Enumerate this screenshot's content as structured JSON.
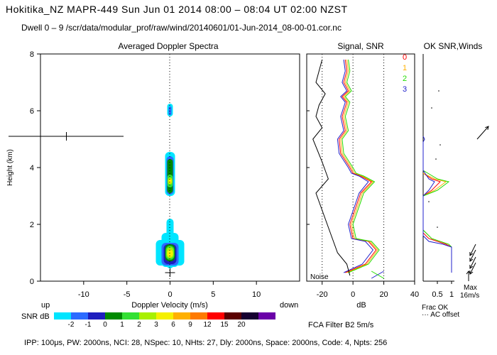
{
  "header": {
    "title": "Hokitika_NZ   MAPR-449   Sun Jun 01 2014 08:00 – 08:04 UT 02:00 NZST",
    "dwell": "Dwell  0 –  9   /scr/data/modular_prof/raw/wind/20140601/01-Jun-2014_08-00-01.cor.nc"
  },
  "footer": {
    "params": "IPP: 100μs,  PW: 2000ns,  NCI:  28,  NSpec: 10, NHts: 27,  Dly: 2000ns,  Space: 2000ns,  Code: 4,  Npts: 256",
    "fca_filter": "FCA Filter B2   5m/s"
  },
  "colors": {
    "snr_scale": [
      "#00e5ff",
      "#2c6bff",
      "#1e1ebe",
      "#008a00",
      "#33e033",
      "#a8f000",
      "#f5f000",
      "#ffb000",
      "#ff7a00",
      "#ff0000",
      "#5a0000",
      "#150030",
      "#6a00a8"
    ],
    "beam0": "#ff0000",
    "beam1": "#ffb000",
    "beam2": "#22dd00",
    "beam3": "#2020cc"
  },
  "chart_data": [
    {
      "type": "heatmap",
      "title": "Averaged Doppler Spectra",
      "xlabel": "Doppler Velocity (m/s)",
      "ylabel": "Height (km)",
      "x_left_label": "up",
      "x_right_label": "down",
      "xlim": [
        -15,
        15
      ],
      "ylim": [
        0,
        8
      ],
      "xticks": [
        -10,
        -5,
        0,
        5,
        10
      ],
      "yticks": [
        0,
        2,
        4,
        6,
        8
      ],
      "colorbar": {
        "label": "SNR dB",
        "tick_labels": [
          "-2",
          "-1",
          "0",
          "1",
          "2",
          "3",
          "6",
          "9",
          "12",
          "15",
          "20"
        ]
      },
      "wind_cross": {
        "x": -12,
        "y": 5.1
      },
      "surface_cross": {
        "x": 0,
        "y": 0.3
      },
      "echo_regions": [
        {
          "y_range": [
            5.8,
            6.3
          ],
          "peak_snr_db": 0
        },
        {
          "y_range": [
            3.0,
            4.5
          ],
          "peak_snr_db": 6
        },
        {
          "y_range": [
            0.4,
            2.2
          ],
          "peak_snr_db": 6
        }
      ]
    },
    {
      "type": "line",
      "title": "Signal, SNR",
      "xlabel": "dB",
      "xlim": [
        -30,
        40
      ],
      "xticks": [
        -20,
        0,
        20,
        40
      ],
      "dotted_x": [
        -20,
        0,
        20
      ],
      "noise_label": "Noise",
      "series": [
        {
          "beam": "0",
          "points": [
            [
              -5,
              7.8
            ],
            [
              -4,
              7.4
            ],
            [
              -6,
              7
            ],
            [
              -3,
              6.7
            ],
            [
              -7,
              6.5
            ],
            [
              -4,
              6.3
            ],
            [
              -7,
              5.8
            ],
            [
              -5,
              5.3
            ],
            [
              -9,
              5
            ],
            [
              -8,
              4.5
            ],
            [
              -2,
              4.0
            ],
            [
              0,
              3.8
            ],
            [
              5,
              3.7
            ],
            [
              12,
              3.5
            ],
            [
              5,
              3.1
            ],
            [
              -2,
              2.0
            ],
            [
              0,
              1.5
            ],
            [
              10,
              1.4
            ],
            [
              15,
              1.1
            ],
            [
              8,
              0.6
            ],
            [
              -5,
              0.3
            ]
          ]
        },
        {
          "beam": "1",
          "points": [
            [
              -4,
              7.8
            ],
            [
              -3,
              7.4
            ],
            [
              -5,
              7
            ],
            [
              -2,
              6.7
            ],
            [
              -6,
              6.5
            ],
            [
              -3,
              6.3
            ],
            [
              -6,
              5.8
            ],
            [
              -4,
              5.3
            ],
            [
              -8,
              5
            ],
            [
              -7,
              4.5
            ],
            [
              -1,
              4.0
            ],
            [
              1,
              3.8
            ],
            [
              6,
              3.7
            ],
            [
              13,
              3.5
            ],
            [
              6,
              3.1
            ],
            [
              -1,
              2.0
            ],
            [
              1,
              1.5
            ],
            [
              11,
              1.4
            ],
            [
              16,
              1.1
            ],
            [
              9,
              0.6
            ],
            [
              -4,
              0.3
            ]
          ]
        },
        {
          "beam": "2",
          "points": [
            [
              -3,
              7.8
            ],
            [
              -2,
              7.4
            ],
            [
              -4,
              7
            ],
            [
              -1,
              6.7
            ],
            [
              -5,
              6.5
            ],
            [
              -2,
              6.3
            ],
            [
              -5,
              5.8
            ],
            [
              -3,
              5.3
            ],
            [
              -7,
              5
            ],
            [
              -6,
              4.5
            ],
            [
              0,
              4.0
            ],
            [
              2,
              3.8
            ],
            [
              7,
              3.7
            ],
            [
              14,
              3.5
            ],
            [
              7,
              3.1
            ],
            [
              0,
              2.0
            ],
            [
              2,
              1.5
            ],
            [
              12,
              1.4
            ],
            [
              17,
              1.1
            ],
            [
              10,
              0.6
            ],
            [
              -3,
              0.3
            ]
          ]
        },
        {
          "beam": "3",
          "points": [
            [
              -6,
              7.8
            ],
            [
              -5,
              7.4
            ],
            [
              -7,
              7
            ],
            [
              -4,
              6.7
            ],
            [
              -8,
              6.5
            ],
            [
              -5,
              6.3
            ],
            [
              -8,
              5.8
            ],
            [
              -6,
              5.3
            ],
            [
              -10,
              5
            ],
            [
              -9,
              4.5
            ],
            [
              -3,
              4.0
            ],
            [
              -1,
              3.8
            ],
            [
              4,
              3.7
            ],
            [
              10,
              3.5
            ],
            [
              4,
              3.1
            ],
            [
              -3,
              2.0
            ],
            [
              -1,
              1.5
            ],
            [
              8,
              1.4
            ],
            [
              13,
              1.1
            ],
            [
              6,
              0.6
            ],
            [
              -6,
              0.3
            ]
          ]
        },
        {
          "beam": "noise",
          "points": [
            [
              -20,
              7.8
            ],
            [
              -24,
              7
            ],
            [
              -18,
              6.6
            ],
            [
              -22,
              6.2
            ],
            [
              -24,
              5.8
            ],
            [
              -20,
              5.4
            ],
            [
              -26,
              5
            ],
            [
              -20,
              4.2
            ],
            [
              -16,
              3.6
            ],
            [
              -24,
              3.1
            ],
            [
              -14,
              1.6
            ],
            [
              -10,
              1.0
            ],
            [
              -4,
              0.6
            ],
            [
              -2,
              0.2
            ]
          ]
        }
      ]
    },
    {
      "type": "line",
      "title": "OK SNR,Winds",
      "xlabel": "Frac OK",
      "xlim": [
        0,
        1.15
      ],
      "xticks": [
        0.5,
        1
      ],
      "legend": [
        "0",
        "1",
        "2",
        "3"
      ],
      "ac_offset_label": "··· AC offset",
      "series": [
        {
          "beam": "0",
          "points": [
            [
              0,
              3.8
            ],
            [
              0.3,
              3.6
            ],
            [
              0.6,
              3.5
            ],
            [
              0.3,
              3.2
            ],
            [
              0,
              3.0
            ],
            [
              0,
              1.7
            ],
            [
              0.2,
              1.5
            ],
            [
              0.8,
              1.3
            ],
            [
              1,
              1.2
            ],
            [
              1,
              0.3
            ]
          ]
        },
        {
          "beam": "1",
          "points": [
            [
              0,
              3.8
            ],
            [
              0.4,
              3.6
            ],
            [
              0.8,
              3.5
            ],
            [
              0.4,
              3.2
            ],
            [
              0,
              3.0
            ],
            [
              0,
              1.8
            ],
            [
              0.3,
              1.5
            ],
            [
              0.9,
              1.3
            ],
            [
              1,
              1.2
            ],
            [
              1,
              0.3
            ]
          ]
        },
        {
          "beam": "2",
          "points": [
            [
              0,
              3.9
            ],
            [
              0.5,
              3.6
            ],
            [
              0.9,
              3.5
            ],
            [
              0.5,
              3.2
            ],
            [
              0,
              3.0
            ],
            [
              0,
              1.8
            ],
            [
              0.3,
              1.5
            ],
            [
              0.9,
              1.3
            ],
            [
              1,
              1.2
            ],
            [
              1,
              0.3
            ]
          ]
        },
        {
          "beam": "3",
          "points": [
            [
              0,
              5.1
            ],
            [
              0.05,
              5.0
            ],
            [
              0,
              4.9
            ],
            [
              0,
              3.9
            ],
            [
              0.2,
              3.6
            ],
            [
              0.4,
              3.5
            ],
            [
              0.2,
              3.2
            ],
            [
              0,
              3.0
            ],
            [
              0,
              1.6
            ],
            [
              0.2,
              1.4
            ],
            [
              0.7,
              1.3
            ],
            [
              1,
              1.2
            ],
            [
              1,
              0.3
            ]
          ]
        }
      ]
    },
    {
      "type": "scatter",
      "title": "Winds",
      "max_label": "Max",
      "max_value_label": "16m/s",
      "barbs": [
        {
          "height_km": 5.3,
          "dir": "up-right"
        },
        {
          "height_km": 1.0,
          "dir": "down-left"
        },
        {
          "height_km": 0.8,
          "dir": "down-left"
        },
        {
          "height_km": 0.55,
          "dir": "down-left"
        },
        {
          "height_km": 0.35,
          "dir": "down-left"
        }
      ]
    }
  ]
}
